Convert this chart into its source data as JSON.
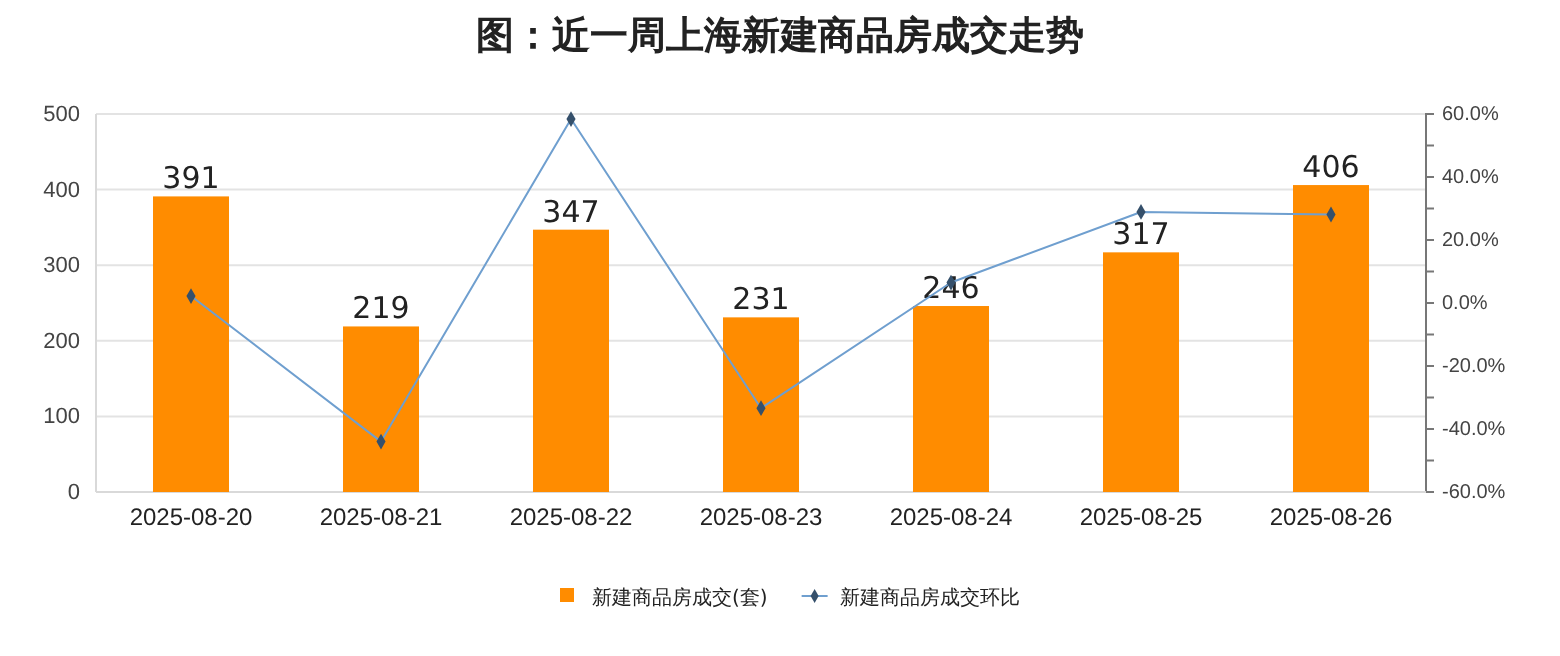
{
  "chart_data": {
    "type": "bar",
    "title": "图：近一周上海新建商品房成交走势",
    "categories": [
      "2025-08-20",
      "2025-08-21",
      "2025-08-22",
      "2025-08-23",
      "2025-08-24",
      "2025-08-25",
      "2025-08-26"
    ],
    "series": [
      {
        "name": "新建商品房成交(套)",
        "color": "#ff8c00",
        "values": [
          391,
          219,
          347,
          231,
          246,
          317,
          406
        ],
        "value_labels": [
          "391",
          "219",
          "347",
          "231",
          "246",
          "317",
          "406"
        ]
      },
      {
        "name": "新建商品房成交环比",
        "type": "line",
        "axis": "y2",
        "color": "#6f9fcf",
        "marker": "diamond",
        "values": [
          2.2,
          -44.0,
          58.4,
          -33.4,
          6.5,
          28.9,
          28.1
        ]
      }
    ],
    "ylim": [
      0,
      500
    ],
    "yticks": [
      0,
      100,
      200,
      300,
      400,
      500
    ],
    "y2lim": [
      -60,
      60
    ],
    "y2ticks": [
      {
        "value": -60,
        "label": "-60.0%"
      },
      {
        "value": -50,
        "label": null
      },
      {
        "value": -40,
        "label": "-40.0%"
      },
      {
        "value": -30,
        "label": null
      },
      {
        "value": -20,
        "label": "-20.0%"
      },
      {
        "value": -10,
        "label": null
      },
      {
        "value": 0,
        "label": "0.0%"
      },
      {
        "value": 10,
        "label": null
      },
      {
        "value": 20,
        "label": "20.0%"
      },
      {
        "value": 30,
        "label": null
      },
      {
        "value": 40,
        "label": "40.0%"
      },
      {
        "value": 50,
        "label": null
      },
      {
        "value": 60,
        "label": "60.0%"
      }
    ],
    "grid": "y",
    "legend": "bottom"
  }
}
